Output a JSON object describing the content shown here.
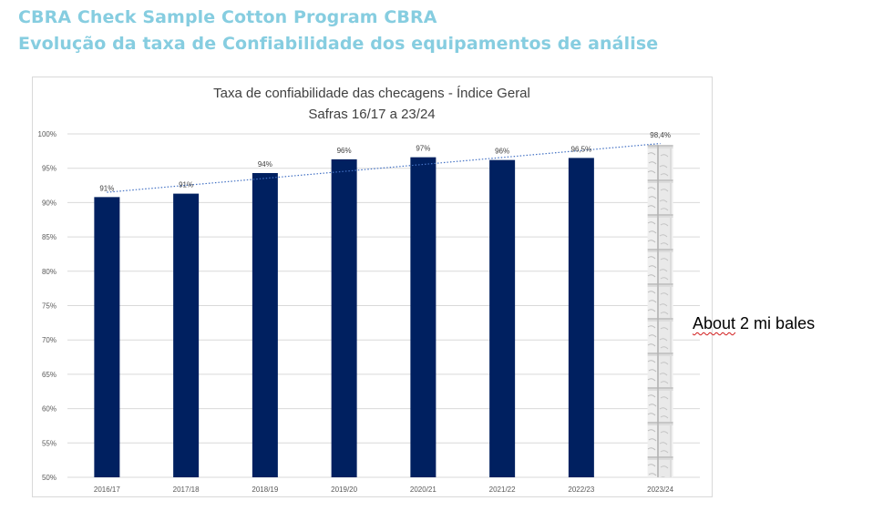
{
  "slide": {
    "heading_line1": "CBRA Check Sample Cotton Program CBRA",
    "heading_line2": "Evolução da taxa de Confiabilidade dos equipamentos de análise",
    "note_prefix": "About",
    "note_rest": " 2 mi bales"
  },
  "colors": {
    "heading": "#86cde0",
    "bar": "#002060",
    "trendline": "#4472c4",
    "gridline": "#d9d9d9"
  },
  "chart_data": {
    "type": "bar",
    "title": "Taxa de confiabilidade das checagens - Índice Geral",
    "subtitle": "Safras 16/17 a 23/24",
    "xlabel": "",
    "ylabel": "",
    "categories": [
      "2016/17",
      "2017/18",
      "2018/19",
      "2019/20",
      "2020/21",
      "2021/22",
      "2022/23",
      "2023/24"
    ],
    "series": [
      {
        "name": "Índice Geral",
        "values": [
          90.8,
          91.3,
          94.3,
          96.3,
          96.6,
          96.2,
          96.5,
          98.4
        ],
        "data_labels": [
          "91%",
          "91%",
          "94%",
          "96%",
          "97%",
          "96%",
          "96,5%",
          "98,4%"
        ],
        "last_bar_style": "cotton-bales-photo"
      }
    ],
    "trendline": {
      "type": "linear",
      "series": "Índice Geral"
    },
    "ylim": [
      50,
      100
    ],
    "yticks": [
      50,
      55,
      60,
      65,
      70,
      75,
      80,
      85,
      90,
      95,
      100
    ],
    "ytick_labels": [
      "50%",
      "55%",
      "60%",
      "65%",
      "70%",
      "75%",
      "80%",
      "85%",
      "90%",
      "95%",
      "100%"
    ],
    "grid": true,
    "legend": "none"
  }
}
